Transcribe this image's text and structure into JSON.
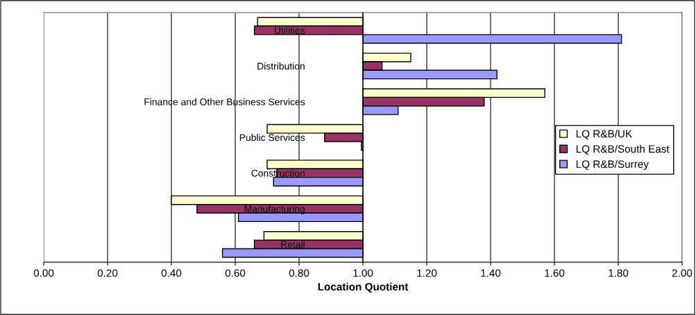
{
  "chart_data": {
    "type": "bar",
    "orientation": "horizontal",
    "xlabel": "Location Quotient",
    "categories": [
      "Utilities",
      "Distribution",
      "Finance and Other Business Services",
      "Public Services",
      "Construction",
      "Manufacturing",
      "Retail"
    ],
    "series": [
      {
        "name": "LQ R&B/UK",
        "color": "#ffffcc",
        "base": [
          1.0,
          1.0,
          1.0,
          1.0,
          1.0,
          1.0,
          1.0
        ],
        "values": [
          -0.33,
          0.15,
          0.57,
          -0.3,
          -0.3,
          -0.6,
          -0.31
        ]
      },
      {
        "name": "LQ R&B/South East",
        "color": "#993366",
        "base": [
          1.0,
          1.0,
          1.0,
          1.0,
          1.0,
          1.0,
          1.0
        ],
        "values": [
          -0.34,
          0.06,
          0.38,
          -0.12,
          -0.27,
          -0.52,
          -0.34
        ]
      },
      {
        "name": "LQ R&B/Surrey",
        "color": "#9999ff",
        "base": [
          1.0,
          1.0,
          1.0,
          1.0,
          1.0,
          1.0,
          1.0
        ],
        "values": [
          0.81,
          0.42,
          0.11,
          -0.005,
          -0.28,
          -0.39,
          -0.44
        ]
      }
    ],
    "xlim": [
      0,
      2
    ],
    "xticks": [
      {
        "value": 0,
        "label": "0.00"
      },
      {
        "value": 0.2,
        "label": "0.20"
      },
      {
        "value": 0.4,
        "label": "0.40"
      },
      {
        "value": 0.6,
        "label": "0.60"
      },
      {
        "value": 0.8,
        "label": "0.80"
      },
      {
        "value": 1.0,
        "label": "1.00"
      },
      {
        "value": 1.2,
        "label": "1.20"
      },
      {
        "value": 1.4,
        "label": "1.40"
      },
      {
        "value": 1.6,
        "label": "1.60"
      },
      {
        "value": 1.8,
        "label": "1.80"
      },
      {
        "value": 2.0,
        "label": "2.00"
      }
    ],
    "grid": "x",
    "legend": "right"
  }
}
